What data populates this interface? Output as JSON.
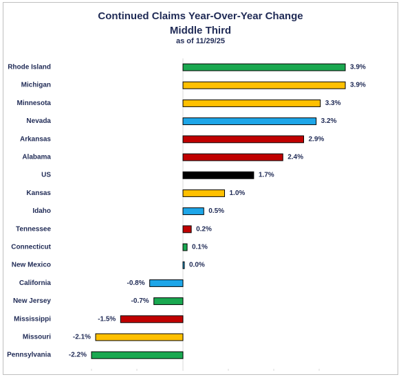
{
  "chart_data": {
    "type": "bar",
    "orientation": "horizontal",
    "title": "Continued Claims Year-Over-Year Change",
    "subtitle": "Middle Third",
    "date_note": "as of 11/29/25",
    "categories": [
      "Rhode Island",
      "Michigan",
      "Minnesota",
      "Nevada",
      "Arkansas",
      "Alabama",
      "US",
      "Kansas",
      "Idaho",
      "Tennessee",
      "Connecticut",
      "New Mexico",
      "California",
      "New Jersey",
      "Mississippi",
      "Missouri",
      "Pennsylvania"
    ],
    "values": [
      3.9,
      3.9,
      3.3,
      3.2,
      2.9,
      2.4,
      1.7,
      1.0,
      0.5,
      0.2,
      0.1,
      0.0,
      -0.8,
      -0.7,
      -1.5,
      -2.1,
      -2.2
    ],
    "value_labels": [
      "3.9%",
      "3.9%",
      "3.3%",
      "3.2%",
      "2.9%",
      "2.4%",
      "1.7%",
      "1.0%",
      "0.5%",
      "0.2%",
      "0.1%",
      "0.0%",
      "-0.8%",
      "-0.7%",
      "-1.5%",
      "-2.1%",
      "-2.2%"
    ],
    "bar_colors": [
      "#1aa850",
      "#ffc000",
      "#ffc000",
      "#1ea6e8",
      "#c00000",
      "#c00000",
      "#000000",
      "#ffc000",
      "#1ea6e8",
      "#c00000",
      "#1aa850",
      "#1ea6e8",
      "#1ea6e8",
      "#1aa850",
      "#c00000",
      "#ffc000",
      "#1aa850"
    ],
    "xlim": [
      -2.2,
      3.9
    ],
    "grid": false,
    "legend": "none"
  }
}
